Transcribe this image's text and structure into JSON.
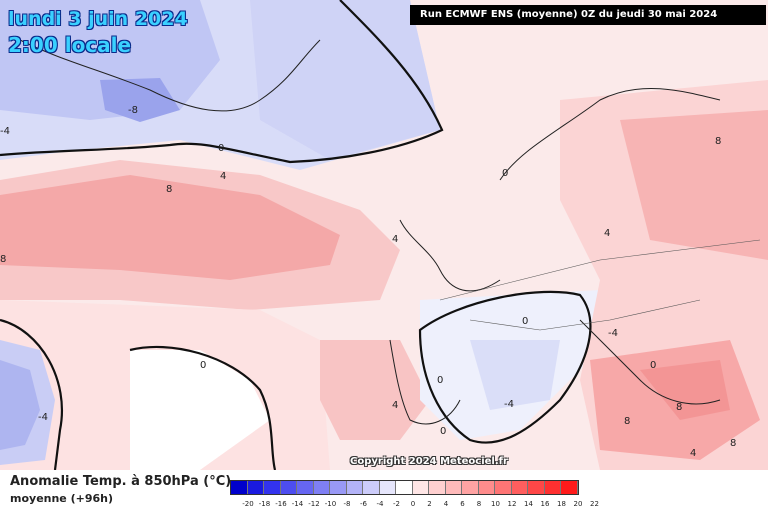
{
  "header": {
    "date": "lundi 3 juin 2024",
    "time": "2:00 locale",
    "run": "Run ECMWF ENS (moyenne) 0Z du jeudi 30 mai 2024"
  },
  "copyright": "Copyright 2024 Meteociel.fr",
  "legend": {
    "title": "Anomalie Temp. à 850hPa (°C)",
    "subtitle": "moyenne  (+96h)",
    "ticks": [
      "-20",
      "-18",
      "-16",
      "-14",
      "-12",
      "-10",
      "-8",
      "-6",
      "-4",
      "-2",
      "0",
      "2",
      "4",
      "6",
      "8",
      "10",
      "12",
      "14",
      "16",
      "18",
      "20",
      "22"
    ],
    "colors": [
      "#0000cc",
      "#1a1ae0",
      "#3333ee",
      "#4d4df0",
      "#6666f2",
      "#7f7ff4",
      "#9999f6",
      "#b3b3f8",
      "#ccccfa",
      "#e6e6fc",
      "#ffffff",
      "#ffe6e6",
      "#ffd0d0",
      "#ffbaba",
      "#ffa3a3",
      "#ff8c8c",
      "#ff7575",
      "#ff5e5e",
      "#ff4747",
      "#ff3030",
      "#ff1a1a"
    ]
  },
  "contour_labels": [
    "-8",
    "0",
    "4",
    "8",
    "0",
    "8",
    "4",
    "4",
    "8",
    "0",
    "0",
    "-4",
    "0",
    "-4",
    "0",
    "0",
    "-4",
    "8",
    "8",
    "8",
    "4",
    "-4",
    "4"
  ]
}
